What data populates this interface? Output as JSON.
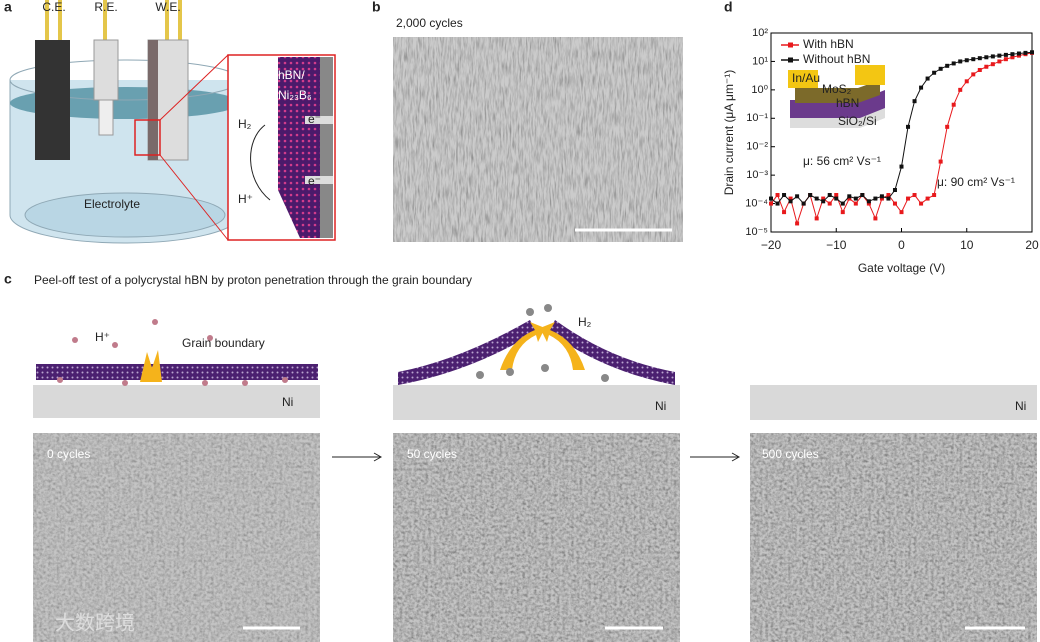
{
  "panels": {
    "a": {
      "label": "a",
      "electrodes": [
        "C.E.",
        "R.E.",
        "W.E."
      ],
      "layer": "hBN/",
      "substrate": "Ni₂₃B₆",
      "h2": "H₂",
      "proton": "H⁺",
      "electron": [
        "e⁻",
        "e⁻"
      ],
      "electrolyte": "Electrolyte"
    },
    "b": {
      "label": "b",
      "caption": "2,000 cycles"
    },
    "c": {
      "label": "c",
      "title": "Peel-off test of a polycrystal hBN by proton penetration through the grain boundary",
      "proton": "H⁺",
      "grain_boundary": "Grain boundary",
      "h2": "H₂",
      "substrate": [
        "Ni",
        "Ni",
        "Ni"
      ],
      "images": [
        "0 cycles",
        "50 cycles",
        "500 cycles"
      ]
    },
    "d": {
      "label": "d"
    }
  },
  "watermark": "大数跨境",
  "chart_data": {
    "type": "line",
    "xlabel": "Gate voltage (V)",
    "ylabel": "Drain current (μA μm⁻¹)",
    "xlim": [
      -20,
      20
    ],
    "xticks": [
      {
        "value": -20,
        "label": "−20"
      },
      {
        "value": -10,
        "label": "−10"
      },
      0,
      10,
      20
    ],
    "ylim": [
      1e-05,
      100
    ],
    "log_y": true,
    "yticks": [
      {
        "value": 1e-05,
        "label": "10⁻⁵"
      },
      {
        "value": 0.0001,
        "label": "10⁻⁴"
      },
      {
        "value": 0.001,
        "label": "10⁻³"
      },
      {
        "value": 0.01,
        "label": "10⁻²"
      },
      {
        "value": 0.1,
        "label": "10⁻¹"
      },
      {
        "value": 1,
        "label": "10⁰"
      },
      {
        "value": 10,
        "label": "10¹"
      },
      {
        "value": 100,
        "label": "10²"
      }
    ],
    "legend": "upper left",
    "x": [
      -20,
      -19,
      -18,
      -17,
      -16,
      -15,
      -14,
      -13,
      -12,
      -11,
      -10,
      -9,
      -8,
      -7,
      -6,
      -5,
      -4,
      -3,
      -2,
      -1,
      0,
      1,
      2,
      3,
      4,
      5,
      6,
      7,
      8,
      9,
      10,
      11,
      12,
      13,
      14,
      15,
      16,
      17,
      18,
      19,
      20
    ],
    "series": [
      {
        "name": "With hBN",
        "color": "#e8191c",
        "values": [
          0.0001,
          0.0002,
          5e-05,
          0.00015,
          2e-05,
          0.0001,
          0.0002,
          3e-05,
          0.00015,
          0.0001,
          0.0002,
          5e-05,
          0.00015,
          0.0001,
          0.0002,
          0.0001,
          3e-05,
          0.00015,
          0.0002,
          0.0001,
          5e-05,
          0.00015,
          0.0002,
          0.0001,
          0.00015,
          0.0002,
          0.003,
          0.05,
          0.3,
          1,
          2,
          3.5,
          5,
          6.5,
          8,
          10,
          12,
          14,
          16,
          18,
          20
        ]
      },
      {
        "name": "Without hBN",
        "color": "#111111",
        "values": [
          0.00015,
          0.0001,
          0.0002,
          0.00012,
          0.00018,
          0.0001,
          0.0002,
          0.00015,
          0.00012,
          0.0002,
          0.00015,
          0.0001,
          0.00018,
          0.00015,
          0.0002,
          0.00012,
          0.00015,
          0.00018,
          0.00015,
          0.0003,
          0.002,
          0.05,
          0.4,
          1.2,
          2.5,
          4,
          5.5,
          7,
          8.5,
          10,
          11,
          12,
          13,
          14,
          15,
          16,
          17,
          18,
          19,
          20,
          21
        ]
      }
    ],
    "annotations": [
      "μ: 56 cm² Vs⁻¹",
      "μ: 90 cm² Vs⁻¹"
    ],
    "inset": [
      "In/Au",
      "MoS₂",
      "hBN",
      "SiO₂/Si"
    ]
  }
}
